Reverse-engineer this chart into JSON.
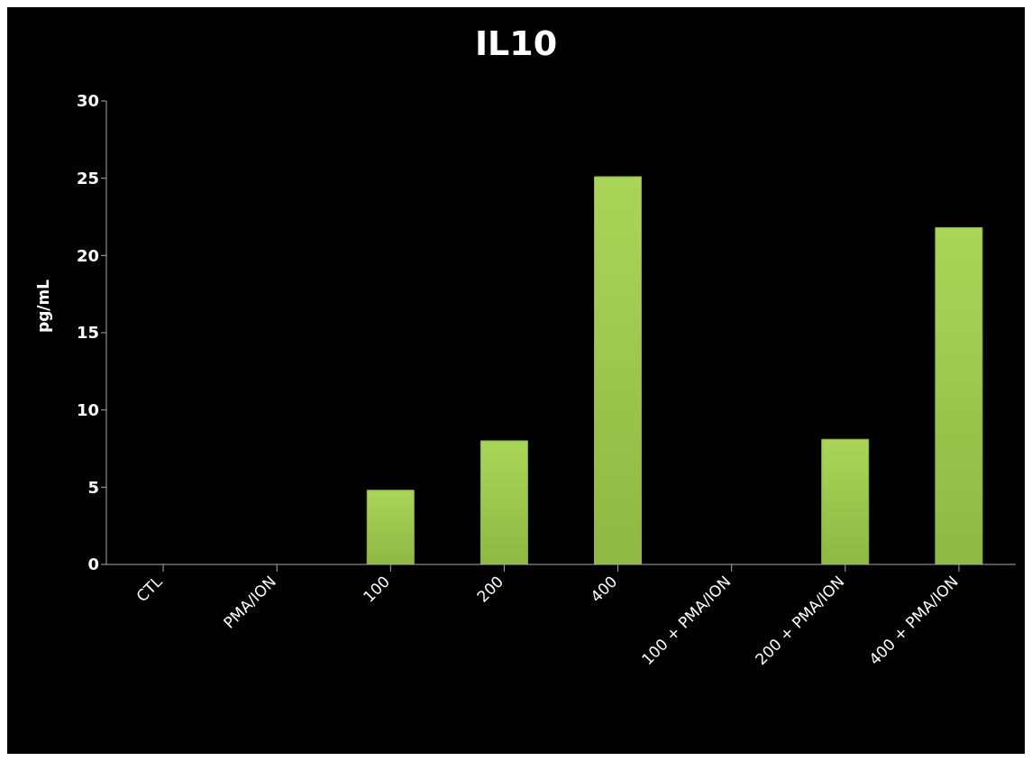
{
  "chart_data": {
    "type": "bar",
    "title": "IL10",
    "ylabel": "pg/mL",
    "categories": [
      "CTL",
      "PMA/ION",
      "100",
      "200",
      "400",
      "100 + PMA/ION",
      "200 + PMA/ION",
      "400 + PMA/ION"
    ],
    "values": [
      0,
      0,
      4.8,
      8.0,
      25.1,
      0,
      8.1,
      21.8
    ],
    "color": "#8db843",
    "ylim": [
      0,
      30
    ],
    "yticks": [
      0,
      5,
      10,
      15,
      20,
      25,
      30
    ],
    "grid": false,
    "legend": false
  }
}
